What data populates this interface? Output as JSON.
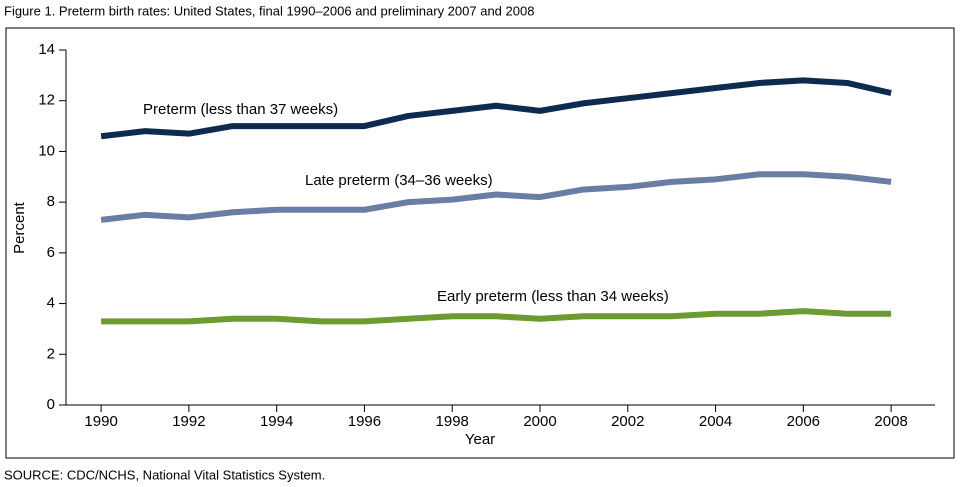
{
  "chart_data": {
    "type": "line",
    "title": "Figure 1. Preterm birth rates: United States, final 1990–2006 and preliminary 2007 and 2008",
    "x_label": "Year",
    "y_label": "Percent",
    "source": "SOURCE: CDC/NCHS, National Vital Statistics System.",
    "x": [
      1990,
      1991,
      1992,
      1993,
      1994,
      1995,
      1996,
      1997,
      1998,
      1999,
      2000,
      2001,
      2002,
      2003,
      2004,
      2005,
      2006,
      2007,
      2008
    ],
    "series": [
      {
        "name": "Preterm (less than 37 weeks)",
        "color": "#0e2a4f",
        "values": [
          10.6,
          10.8,
          10.7,
          11.0,
          11.0,
          11.0,
          11.0,
          11.4,
          11.6,
          11.8,
          11.6,
          11.9,
          12.1,
          12.3,
          12.5,
          12.7,
          12.8,
          12.7,
          12.3
        ]
      },
      {
        "name": "Late preterm (34–36 weeks)",
        "color": "#6a7ea5",
        "values": [
          7.3,
          7.5,
          7.4,
          7.6,
          7.7,
          7.7,
          7.7,
          8.0,
          8.1,
          8.3,
          8.2,
          8.5,
          8.6,
          8.8,
          8.9,
          9.1,
          9.1,
          9.0,
          8.8
        ]
      },
      {
        "name": "Early preterm (less than 34 weeks)",
        "color": "#6b9b31",
        "values": [
          3.3,
          3.3,
          3.3,
          3.4,
          3.4,
          3.3,
          3.3,
          3.4,
          3.5,
          3.5,
          3.4,
          3.5,
          3.5,
          3.5,
          3.6,
          3.6,
          3.7,
          3.6,
          3.6
        ]
      }
    ],
    "xlim": [
      1989.2,
      2009
    ],
    "xticks": [
      1990,
      1992,
      1994,
      1996,
      1998,
      2000,
      2002,
      2004,
      2006,
      2008
    ],
    "ylim": [
      0,
      14
    ],
    "yticks": [
      0,
      2,
      4,
      6,
      8,
      10,
      12,
      14
    ]
  }
}
